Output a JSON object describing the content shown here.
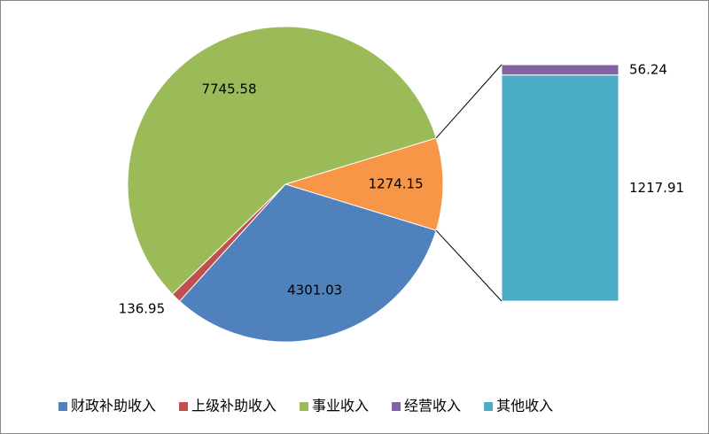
{
  "chart_data": {
    "type": "pie",
    "pie": {
      "categories": [
        "财政补助收入",
        "上级补助收入",
        "事业收入"
      ],
      "values": [
        4301.03,
        136.95,
        7745.58
      ],
      "colors": [
        "#4f81bd",
        "#c0504d",
        "#9bbb59"
      ],
      "other_value": 1274.15,
      "other_color": "#f79646"
    },
    "bar": {
      "categories": [
        "经营收入",
        "其他收入"
      ],
      "values": [
        56.24,
        1217.91
      ],
      "colors": [
        "#8064a2",
        "#4bacc6"
      ]
    },
    "legend": "bottom"
  }
}
